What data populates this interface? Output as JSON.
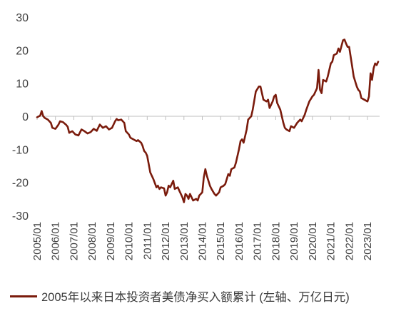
{
  "chart_data": {
    "type": "line",
    "title": "",
    "xlabel": "",
    "ylabel": "",
    "ylim": [
      -30,
      30
    ],
    "yticks": [
      -30,
      -20,
      -10,
      0,
      10,
      20,
      30
    ],
    "x_tick_labels": [
      "2005/01",
      "2006/01",
      "2007/01",
      "2008/01",
      "2009/01",
      "2010/01",
      "2011/01",
      "2012/01",
      "2013/01",
      "2014/01",
      "2015/01",
      "2016/01",
      "2017/01",
      "2018/01",
      "2019/01",
      "2020/01",
      "2021/01",
      "2022/01",
      "2023/01"
    ],
    "grid": false,
    "legend_position": "bottom",
    "color": "#7a1b0c",
    "series": [
      {
        "name": "2005年以来日本投资者美债净买入额累计 (左轴、万亿日元)",
        "points": [
          [
            "2005/01",
            -0.3
          ],
          [
            "2005/03",
            0.2
          ],
          [
            "2005/04",
            1.6
          ],
          [
            "2005/05",
            0.0
          ],
          [
            "2005/06",
            -0.5
          ],
          [
            "2005/08",
            -1.0
          ],
          [
            "2005/10",
            -2.0
          ],
          [
            "2005/11",
            -3.5
          ],
          [
            "2006/01",
            -3.8
          ],
          [
            "2006/03",
            -2.5
          ],
          [
            "2006/04",
            -1.5
          ],
          [
            "2006/06",
            -1.8
          ],
          [
            "2006/08",
            -2.6
          ],
          [
            "2006/09",
            -3.2
          ],
          [
            "2006/10",
            -5.0
          ],
          [
            "2006/12",
            -4.5
          ],
          [
            "2007/02",
            -5.5
          ],
          [
            "2007/04",
            -5.8
          ],
          [
            "2007/06",
            -4.0
          ],
          [
            "2007/08",
            -4.5
          ],
          [
            "2007/10",
            -5.2
          ],
          [
            "2007/12",
            -4.8
          ],
          [
            "2008/02",
            -3.8
          ],
          [
            "2008/04",
            -4.4
          ],
          [
            "2008/06",
            -2.5
          ],
          [
            "2008/08",
            -3.5
          ],
          [
            "2008/10",
            -3.0
          ],
          [
            "2008/12",
            -4.0
          ],
          [
            "2009/02",
            -3.5
          ],
          [
            "2009/04",
            -1.5
          ],
          [
            "2009/05",
            -0.8
          ],
          [
            "2009/06",
            -1.2
          ],
          [
            "2009/08",
            -1.0
          ],
          [
            "2009/10",
            -2.0
          ],
          [
            "2009/11",
            -4.5
          ],
          [
            "2010/01",
            -5.5
          ],
          [
            "2010/02",
            -6.5
          ],
          [
            "2010/04",
            -7.0
          ],
          [
            "2010/06",
            -7.5
          ],
          [
            "2010/07",
            -7.2
          ],
          [
            "2010/09",
            -8.0
          ],
          [
            "2010/10",
            -9.0
          ],
          [
            "2010/11",
            -10.5
          ],
          [
            "2010/12",
            -11.0
          ],
          [
            "2011/01",
            -12.0
          ],
          [
            "2011/03",
            -17.0
          ],
          [
            "2011/05",
            -19.0
          ],
          [
            "2011/07",
            -21.5
          ],
          [
            "2011/08",
            -21.0
          ],
          [
            "2011/09",
            -22.0
          ],
          [
            "2011/10",
            -21.5
          ],
          [
            "2011/12",
            -21.8
          ],
          [
            "2012/01",
            -24.0
          ],
          [
            "2012/02",
            -23.0
          ],
          [
            "2012/03",
            -21.0
          ],
          [
            "2012/04",
            -21.5
          ],
          [
            "2012/06",
            -19.5
          ],
          [
            "2012/07",
            -22.0
          ],
          [
            "2012/09",
            -21.5
          ],
          [
            "2012/10",
            -22.5
          ],
          [
            "2012/12",
            -24.5
          ],
          [
            "2013/01",
            -26.0
          ],
          [
            "2013/02",
            -23.5
          ],
          [
            "2013/03",
            -24.0
          ],
          [
            "2013/04",
            -25.0
          ],
          [
            "2013/05",
            -23.5
          ],
          [
            "2013/07",
            -25.5
          ],
          [
            "2013/09",
            -25.0
          ],
          [
            "2013/10",
            -25.5
          ],
          [
            "2013/11",
            -24.0
          ],
          [
            "2014/01",
            -23.0
          ],
          [
            "2014/02",
            -18.5
          ],
          [
            "2014/03",
            -16.0
          ],
          [
            "2014/04",
            -18.0
          ],
          [
            "2014/06",
            -21.0
          ],
          [
            "2014/07",
            -22.0
          ],
          [
            "2014/09",
            -23.5
          ],
          [
            "2014/10",
            -24.0
          ],
          [
            "2014/12",
            -23.0
          ],
          [
            "2015/01",
            -21.5
          ],
          [
            "2015/03",
            -21.0
          ],
          [
            "2015/04",
            -20.5
          ],
          [
            "2015/06",
            -17.5
          ],
          [
            "2015/07",
            -18.0
          ],
          [
            "2015/08",
            -16.0
          ],
          [
            "2015/10",
            -15.5
          ],
          [
            "2015/11",
            -14.0
          ],
          [
            "2016/01",
            -10.0
          ],
          [
            "2016/02",
            -7.5
          ],
          [
            "2016/03",
            -7.0
          ],
          [
            "2016/04",
            -8.0
          ],
          [
            "2016/06",
            -4.0
          ],
          [
            "2016/07",
            -1.0
          ],
          [
            "2016/09",
            0.0
          ],
          [
            "2016/10",
            2.0
          ],
          [
            "2016/12",
            7.5
          ],
          [
            "2017/02",
            9.0
          ],
          [
            "2017/03",
            9.0
          ],
          [
            "2017/05",
            5.0
          ],
          [
            "2017/07",
            4.5
          ],
          [
            "2017/08",
            5.0
          ],
          [
            "2017/09",
            2.5
          ],
          [
            "2017/11",
            4.5
          ],
          [
            "2017/12",
            6.0
          ],
          [
            "2018/01",
            6.5
          ],
          [
            "2018/02",
            4.0
          ],
          [
            "2018/04",
            2.0
          ],
          [
            "2018/06",
            -2.0
          ],
          [
            "2018/07",
            -3.5
          ],
          [
            "2018/08",
            -4.0
          ],
          [
            "2018/10",
            -4.5
          ],
          [
            "2018/11",
            -3.0
          ],
          [
            "2019/01",
            -3.5
          ],
          [
            "2019/03",
            -2.0
          ],
          [
            "2019/05",
            -1.0
          ],
          [
            "2019/06",
            -1.5
          ],
          [
            "2019/08",
            0.5
          ],
          [
            "2019/09",
            2.0
          ],
          [
            "2019/11",
            4.5
          ],
          [
            "2020/01",
            6.0
          ],
          [
            "2020/02",
            6.5
          ],
          [
            "2020/04",
            8.5
          ],
          [
            "2020/05",
            14.0
          ],
          [
            "2020/06",
            8.0
          ],
          [
            "2020/07",
            7.0
          ],
          [
            "2020/08",
            11.0
          ],
          [
            "2020/10",
            10.5
          ],
          [
            "2020/11",
            12.0
          ],
          [
            "2021/01",
            16.0
          ],
          [
            "2021/02",
            16.5
          ],
          [
            "2021/03",
            18.5
          ],
          [
            "2021/05",
            19.0
          ],
          [
            "2021/06",
            20.5
          ],
          [
            "2021/07",
            19.5
          ],
          [
            "2021/09",
            23.0
          ],
          [
            "2021/10",
            23.2
          ],
          [
            "2021/11",
            22.0
          ],
          [
            "2021/12",
            21.0
          ],
          [
            "2022/01",
            21.0
          ],
          [
            "2022/03",
            15.0
          ],
          [
            "2022/04",
            12.0
          ],
          [
            "2022/06",
            9.0
          ],
          [
            "2022/07",
            8.0
          ],
          [
            "2022/08",
            7.5
          ],
          [
            "2022/09",
            5.5
          ],
          [
            "2022/11",
            5.0
          ],
          [
            "2023/01",
            4.5
          ],
          [
            "2023/02",
            6.0
          ],
          [
            "2023/03",
            13.0
          ],
          [
            "2023/04",
            11.0
          ],
          [
            "2023/05",
            14.5
          ],
          [
            "2023/06",
            16.0
          ],
          [
            "2023/07",
            15.5
          ],
          [
            "2023/08",
            16.5
          ]
        ]
      }
    ]
  }
}
